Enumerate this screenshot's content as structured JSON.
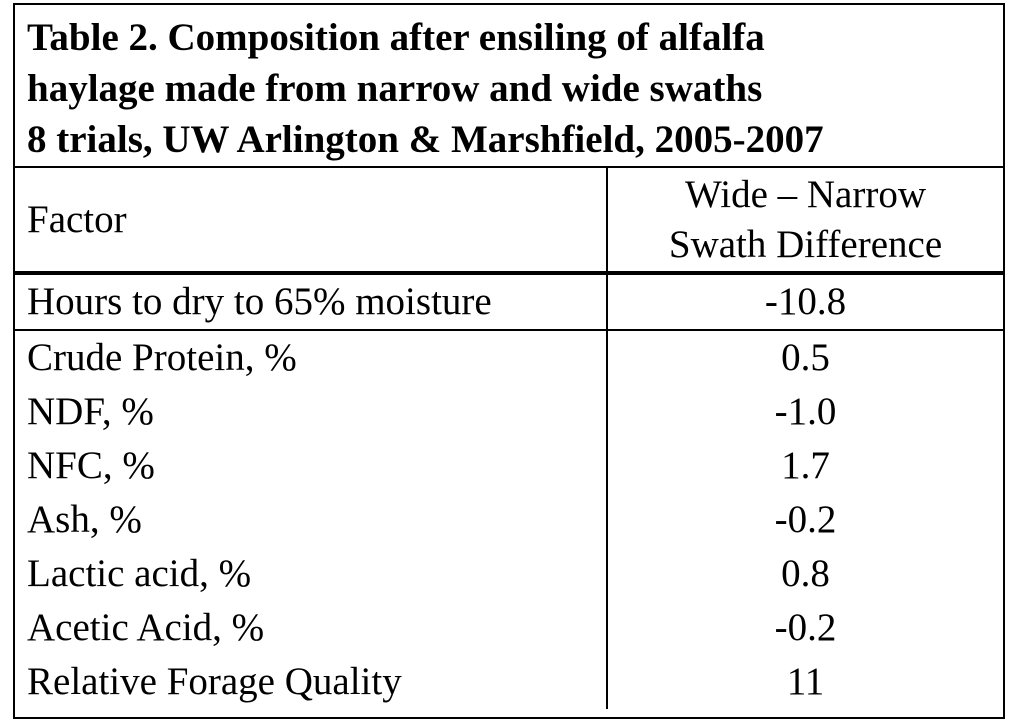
{
  "title": {
    "line1": "Table 2. Composition after ensiling of alfalfa",
    "line2": "haylage made from narrow and wide swaths",
    "line3": "8 trials, UW Arlington & Marshfield, 2005-2007"
  },
  "header": {
    "factor": "Factor",
    "diff_line1": "Wide – Narrow",
    "diff_line2": "Swath Difference"
  },
  "rows": [
    {
      "factor": "Hours to dry to 65% moisture",
      "difference": "-10.8"
    },
    {
      "factor": "Crude Protein, %",
      "difference": "0.5"
    },
    {
      "factor": "NDF, %",
      "difference": "-1.0"
    },
    {
      "factor": "NFC, %",
      "difference": "1.7"
    },
    {
      "factor": "Ash, %",
      "difference": "-0.2"
    },
    {
      "factor": "Lactic acid, %",
      "difference": "0.8"
    },
    {
      "factor": "Acetic Acid, %",
      "difference": "-0.2"
    },
    {
      "factor": "Relative Forage Quality",
      "difference": "11"
    }
  ]
}
